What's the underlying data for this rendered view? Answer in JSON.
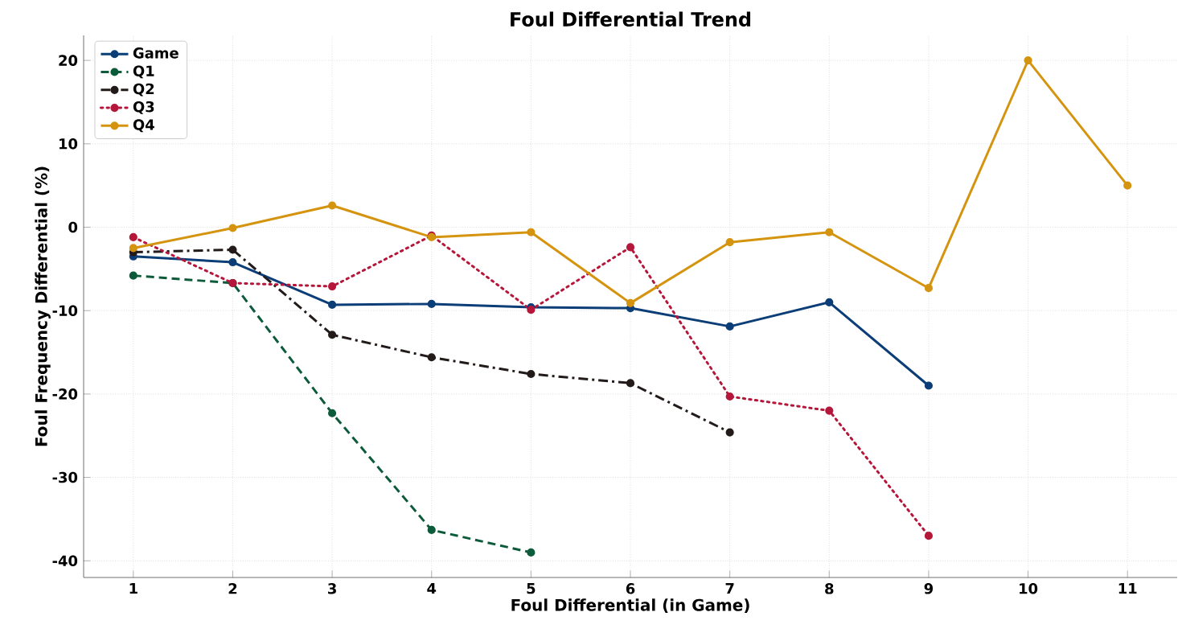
{
  "chart_data": {
    "type": "line",
    "title": "Foul Differential Trend",
    "xlabel": "Foul Differential (in Game)",
    "ylabel": "Foul Frequency Differential (%)",
    "xlim": [
      0.5,
      11.5
    ],
    "ylim": [
      -42,
      23
    ],
    "xticks": [
      1,
      2,
      3,
      4,
      5,
      6,
      7,
      8,
      9,
      10,
      11
    ],
    "yticks": [
      -40,
      -30,
      -20,
      -10,
      0,
      10,
      20
    ],
    "grid": true,
    "legend": "top left",
    "marker": "circle",
    "series": [
      {
        "name": "Game",
        "color": "#0b3d77",
        "line_style": "solid",
        "x": [
          1,
          2,
          3,
          4,
          5,
          6,
          7,
          8,
          9
        ],
        "values": [
          -3.5,
          -4.2,
          -9.3,
          -9.2,
          -9.6,
          -9.7,
          -11.9,
          -9.0,
          -19.0
        ]
      },
      {
        "name": "Q1",
        "color": "#0d5b3a",
        "line_style": "dashed",
        "x": [
          1,
          2,
          3,
          4,
          5
        ],
        "values": [
          -5.8,
          -6.7,
          -22.3,
          -36.3,
          -39.0
        ]
      },
      {
        "name": "Q2",
        "color": "#231a1a",
        "line_style": "dashdot",
        "x": [
          1,
          2,
          3,
          4,
          5,
          6,
          7
        ],
        "values": [
          -3.0,
          -2.7,
          -12.9,
          -15.6,
          -17.6,
          -18.7,
          -24.6
        ]
      },
      {
        "name": "Q3",
        "color": "#b5173b",
        "line_style": "dotted",
        "x": [
          1,
          2,
          3,
          4,
          5,
          6,
          7,
          8,
          9
        ],
        "values": [
          -1.2,
          -6.7,
          -7.1,
          -1.0,
          -9.9,
          -2.4,
          -20.3,
          -22.0,
          -37.0
        ]
      },
      {
        "name": "Q4",
        "color": "#d4940f",
        "line_style": "solid",
        "x": [
          1,
          2,
          3,
          4,
          5,
          6,
          7,
          8,
          9,
          10,
          11
        ],
        "values": [
          -2.5,
          -0.1,
          2.6,
          -1.2,
          -0.6,
          -9.1,
          -1.8,
          -0.6,
          -7.3,
          20.0,
          5.0
        ]
      }
    ]
  }
}
